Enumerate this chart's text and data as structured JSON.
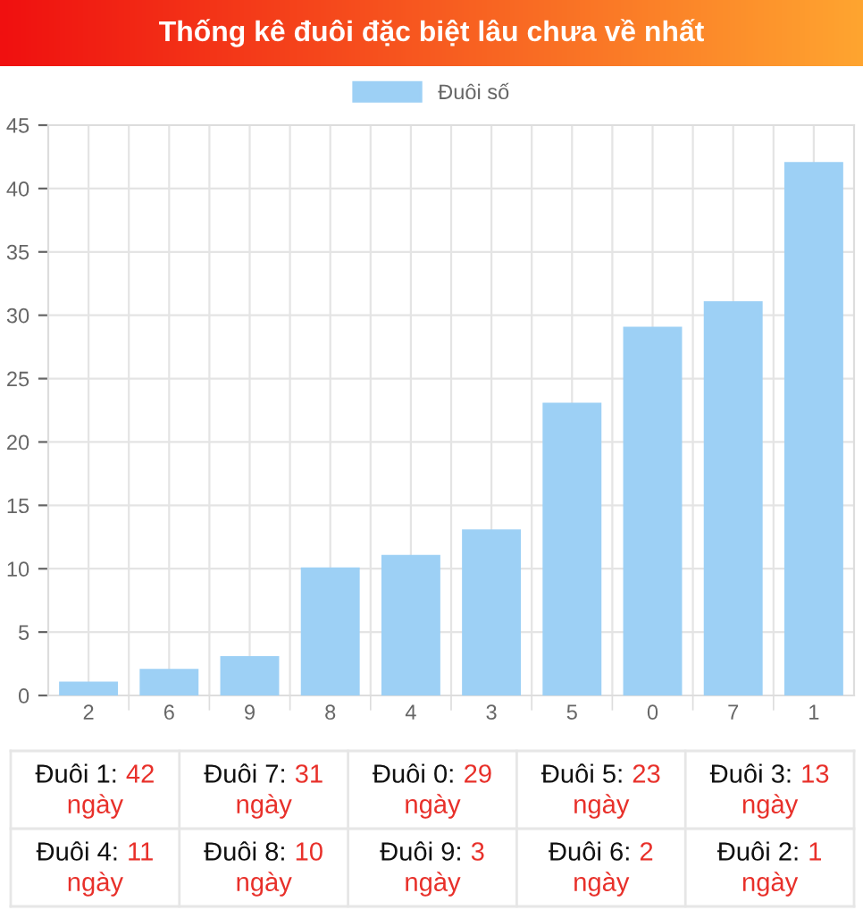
{
  "chart_data": {
    "type": "bar",
    "title": "Thống kê đuôi đặc biệt lâu chưa về nhất",
    "categories": [
      "2",
      "6",
      "9",
      "8",
      "4",
      "3",
      "5",
      "0",
      "7",
      "1"
    ],
    "series": [
      {
        "name": "Đuôi số",
        "color": "#9dd0f5",
        "values": [
          1,
          2,
          3,
          10,
          11,
          13,
          23,
          29,
          31,
          42
        ]
      }
    ],
    "ylim": [
      0,
      45
    ],
    "yticks": [
      0,
      5,
      10,
      15,
      20,
      25,
      30,
      35,
      40,
      45
    ],
    "grid": true,
    "legend": "top",
    "annotations": [
      "Đuôi 1: 42 ngày",
      "Đuôi 7: 31 ngày",
      "Đuôi 0: 29 ngày",
      "Đuôi 5: 23 ngày",
      "Đuôi 3: 13 ngày",
      "Đuôi 4: 11 ngày",
      "Đuôi 8: 10 ngày",
      "Đuôi 9: 3 ngày",
      "Đuôi 6: 2 ngày",
      "Đuôi 2: 1 ngày"
    ]
  }
}
